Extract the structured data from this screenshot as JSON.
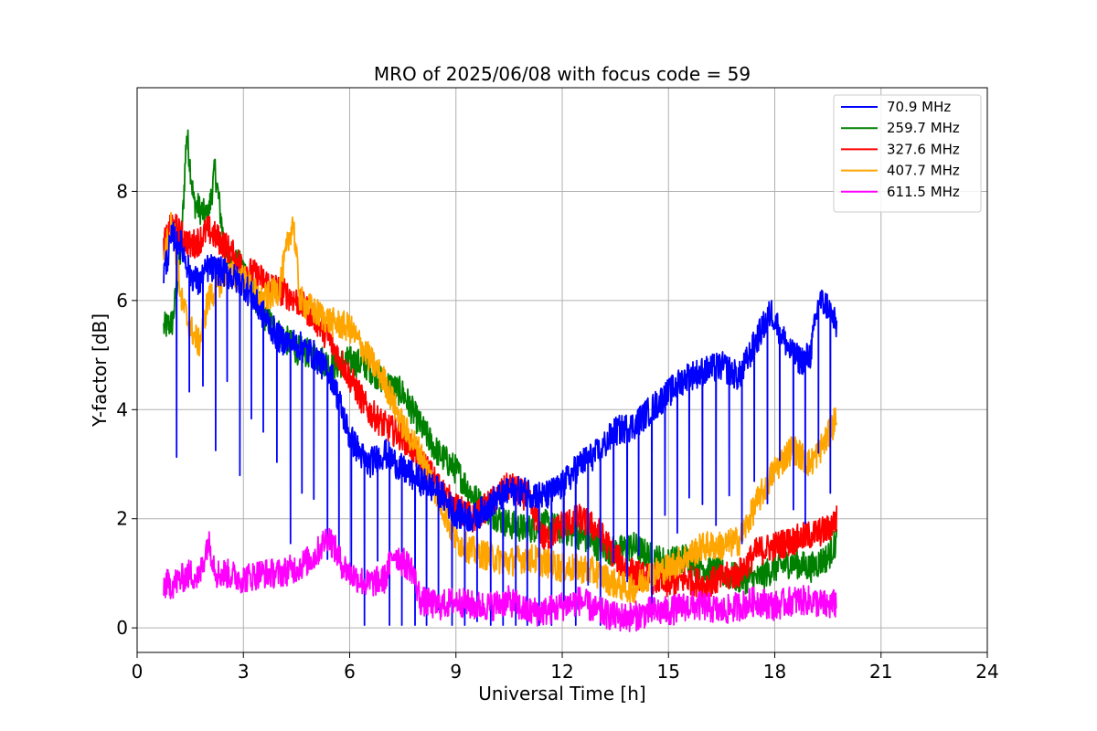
{
  "chart_data": {
    "type": "line",
    "title": "MRO of 2025/06/08 with focus code = 59",
    "xlabel": "Universal Time [h]",
    "ylabel": "Y-factor [dB]",
    "xlim": [
      0,
      24
    ],
    "ylim": [
      -0.45,
      9.9
    ],
    "xticks": [
      0,
      3,
      6,
      9,
      12,
      15,
      18,
      21,
      24
    ],
    "yticks": [
      0,
      2,
      4,
      6,
      8
    ],
    "grid": true,
    "legend_position": "top-right",
    "series": [
      {
        "name": " 70.9 MHz",
        "color": "#0000ff",
        "x": [
          0.75,
          1.0,
          1.25,
          1.5,
          1.75,
          2.0,
          2.5,
          3.0,
          3.5,
          4.0,
          4.5,
          5.0,
          5.5,
          6.0,
          6.5,
          7.0,
          7.5,
          8.0,
          8.5,
          9.0,
          9.5,
          10.0,
          10.5,
          11.0,
          11.5,
          12.0,
          12.5,
          13.0,
          13.5,
          14.0,
          14.5,
          15.0,
          15.5,
          16.0,
          16.5,
          17.0,
          17.5,
          17.9,
          18.25,
          18.5,
          18.75,
          19.0,
          19.25,
          19.5,
          19.75
        ],
        "values": [
          6.5,
          7.2,
          7.0,
          6.5,
          6.3,
          6.6,
          6.5,
          6.3,
          5.8,
          5.3,
          5.2,
          5.0,
          4.6,
          3.5,
          3.0,
          3.2,
          2.9,
          2.7,
          2.5,
          2.1,
          2.0,
          2.3,
          2.5,
          2.5,
          2.4,
          2.6,
          3.0,
          3.2,
          3.6,
          3.7,
          4.0,
          4.3,
          4.6,
          4.7,
          4.8,
          4.6,
          5.3,
          5.8,
          5.3,
          5.0,
          4.9,
          5.0,
          6.0,
          5.9,
          5.5
        ],
        "dips": true
      },
      {
        "name": "259.7 MHz",
        "color": "#008000",
        "x": [
          0.75,
          1.0,
          1.25,
          1.4,
          1.6,
          2.0,
          2.2,
          2.5,
          3.0,
          3.5,
          4.0,
          4.5,
          5.0,
          5.5,
          6.0,
          6.5,
          7.0,
          7.5,
          8.0,
          8.5,
          9.0,
          9.5,
          10.0,
          10.5,
          11.0,
          11.5,
          12.0,
          12.5,
          13.0,
          13.5,
          14.0,
          14.5,
          15.0,
          15.5,
          16.0,
          16.5,
          17.0,
          17.5,
          18.0,
          18.5,
          19.0,
          19.5,
          19.75
        ],
        "values": [
          5.5,
          5.6,
          7.0,
          9.1,
          7.8,
          7.5,
          8.4,
          6.8,
          6.6,
          5.8,
          5.4,
          5.1,
          5.0,
          4.8,
          4.9,
          4.8,
          4.5,
          4.3,
          3.7,
          3.2,
          2.9,
          2.4,
          2.1,
          1.9,
          1.8,
          1.9,
          1.8,
          1.7,
          1.5,
          1.4,
          1.5,
          1.3,
          1.2,
          1.3,
          1.1,
          1.0,
          0.9,
          0.9,
          1.1,
          1.2,
          1.1,
          1.3,
          1.6
        ]
      },
      {
        "name": "327.6 MHz",
        "color": "#ff0000",
        "x": [
          0.75,
          1.0,
          1.25,
          1.5,
          1.75,
          2.0,
          2.5,
          3.0,
          3.5,
          4.0,
          4.5,
          5.0,
          5.5,
          6.0,
          6.5,
          7.0,
          7.5,
          8.0,
          8.5,
          9.0,
          9.5,
          10.0,
          10.5,
          11.0,
          11.5,
          12.0,
          12.5,
          13.0,
          13.5,
          14.0,
          14.5,
          15.0,
          15.5,
          16.0,
          16.5,
          17.0,
          17.5,
          18.0,
          18.5,
          19.0,
          19.5,
          19.75
        ],
        "values": [
          7.0,
          7.4,
          7.2,
          7.0,
          7.1,
          7.3,
          7.0,
          6.6,
          6.4,
          6.2,
          6.0,
          5.7,
          5.2,
          4.6,
          4.0,
          3.7,
          3.5,
          3.1,
          2.6,
          2.2,
          2.0,
          2.3,
          2.6,
          2.4,
          1.6,
          1.9,
          2.0,
          1.8,
          1.3,
          1.0,
          0.9,
          0.8,
          0.9,
          0.8,
          0.9,
          1.0,
          1.4,
          1.5,
          1.6,
          1.7,
          1.8,
          2.0
        ]
      },
      {
        "name": "407.7 MHz",
        "color": "#ffa500",
        "x": [
          0.75,
          1.0,
          1.25,
          1.5,
          1.75,
          2.0,
          2.5,
          3.0,
          3.5,
          4.0,
          4.4,
          4.6,
          5.0,
          5.5,
          6.0,
          6.5,
          7.0,
          7.5,
          8.0,
          8.5,
          9.0,
          9.5,
          10.0,
          10.5,
          11.0,
          11.5,
          12.0,
          12.5,
          13.0,
          13.5,
          14.0,
          14.5,
          15.0,
          15.5,
          16.0,
          16.5,
          17.0,
          17.5,
          18.0,
          18.5,
          19.0,
          19.5,
          19.75
        ],
        "values": [
          6.8,
          7.5,
          6.0,
          5.5,
          5.2,
          6.0,
          6.5,
          6.4,
          6.0,
          6.2,
          7.5,
          6.0,
          5.8,
          5.6,
          5.5,
          5.0,
          4.5,
          3.7,
          3.2,
          2.4,
          1.6,
          1.4,
          1.3,
          1.2,
          1.3,
          1.2,
          1.1,
          1.1,
          1.0,
          0.8,
          0.7,
          1.0,
          1.1,
          1.3,
          1.5,
          1.5,
          1.6,
          2.3,
          2.9,
          3.3,
          3.0,
          3.5,
          3.9
        ]
      },
      {
        "name": "611.5 MHz",
        "color": "#ff00ff",
        "x": [
          0.75,
          1.0,
          1.25,
          1.5,
          1.75,
          2.0,
          2.25,
          2.5,
          3.0,
          3.5,
          4.0,
          4.5,
          5.0,
          5.4,
          5.75,
          6.0,
          6.5,
          7.0,
          7.25,
          7.5,
          7.75,
          8.0,
          8.5,
          9.0,
          9.5,
          10.0,
          10.5,
          11.0,
          11.5,
          12.0,
          12.5,
          13.0,
          13.5,
          14.0,
          14.5,
          15.0,
          15.5,
          16.0,
          16.5,
          17.0,
          17.5,
          18.0,
          18.5,
          19.0,
          19.5,
          19.75
        ],
        "values": [
          0.8,
          0.8,
          0.9,
          1.0,
          0.9,
          1.6,
          1.0,
          1.0,
          0.9,
          1.0,
          1.0,
          1.1,
          1.3,
          1.7,
          1.2,
          1.0,
          0.8,
          0.9,
          1.4,
          1.2,
          1.1,
          0.5,
          0.4,
          0.5,
          0.4,
          0.4,
          0.5,
          0.3,
          0.3,
          0.4,
          0.5,
          0.3,
          0.2,
          0.2,
          0.3,
          0.3,
          0.4,
          0.4,
          0.3,
          0.4,
          0.5,
          0.4,
          0.5,
          0.5,
          0.4,
          0.45
        ]
      }
    ]
  }
}
